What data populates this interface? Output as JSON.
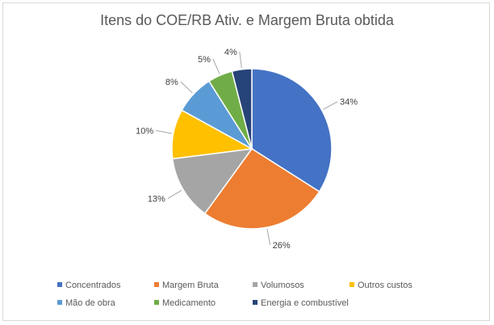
{
  "chart_data": {
    "type": "pie",
    "title": "Itens do COE/RB Ativ. e Margem Bruta obtida",
    "slices": [
      {
        "name": "Concentrados",
        "value": 34,
        "label": "34%",
        "color": "#4472C4"
      },
      {
        "name": "Margem Bruta",
        "value": 26,
        "label": "26%",
        "color": "#ED7D31"
      },
      {
        "name": "Volumosos",
        "value": 13,
        "label": "13%",
        "color": "#A5A5A5"
      },
      {
        "name": "Outros custos",
        "value": 10,
        "label": "10%",
        "color": "#FFC000"
      },
      {
        "name": "Mão de obra",
        "value": 8,
        "label": "8%",
        "color": "#5B9BD5"
      },
      {
        "name": "Medicamento",
        "value": 5,
        "label": "5%",
        "color": "#70AD47"
      },
      {
        "name": "Energia e combustível",
        "value": 4,
        "label": "4%",
        "color": "#264478"
      }
    ],
    "legend_position": "bottom"
  }
}
